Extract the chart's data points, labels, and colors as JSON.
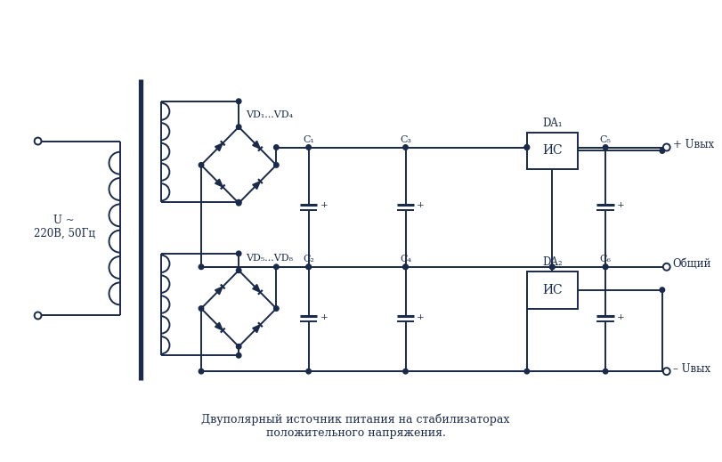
{
  "title": "Двуполярный источник питания на стабилизаторах\nположительного напряжения.",
  "line_color": "#1a2a4a",
  "bg_color": "#ffffff",
  "fig_width": 8.12,
  "fig_height": 5.19,
  "label_u": "U ~\n220В, 50Гц",
  "label_plus_u": "+ Uвых",
  "label_minus_u": "– Uвых",
  "label_common": "Общий",
  "label_da1": "DA₁",
  "label_da2": "DA₂",
  "label_ic": "ИС",
  "label_vd14": "VD₁...VD₄",
  "label_vd58": "VD₅...VD₈",
  "label_c1": "C₁",
  "label_c2": "C₂",
  "label_c3": "C₃",
  "label_c4": "C₄",
  "label_c5": "C₅",
  "label_c6": "C₆"
}
